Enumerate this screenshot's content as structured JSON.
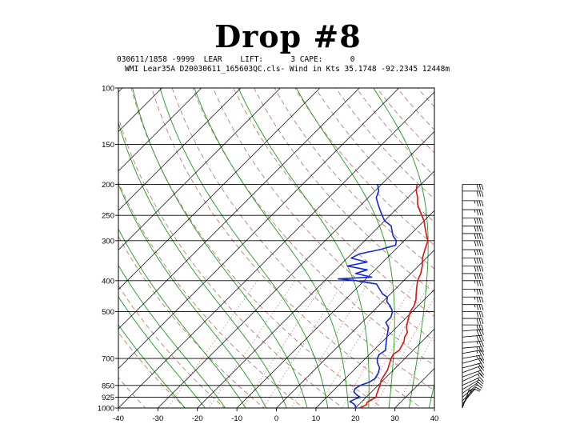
{
  "title": "Drop #8",
  "header": {
    "line1": "030611/1858 -9999  LEAR    LIFT:      3 CAPE:      0",
    "line2": "WMI Lear35A D20030611_165603QC.cls- Wind in Kts 35.1748 -92.2345 12448m"
  },
  "colors": {
    "temperature": "#e01010",
    "dewpoint": "#1028d8",
    "moist_adiabat": "#1e9a1e",
    "dry_adiabat": "#b46f5f",
    "mixing_ratio": "#d08080",
    "isotherm": "#000000",
    "isobar": "#000000"
  },
  "chart_data": {
    "type": "skew-t",
    "xlabel": "",
    "ylabel": "",
    "x_ticks": [
      -40,
      -30,
      -20,
      -10,
      0,
      10,
      20,
      30,
      40
    ],
    "xlim": [
      -40,
      40
    ],
    "y_ticks": [
      100,
      150,
      200,
      250,
      300,
      400,
      500,
      700,
      850,
      925,
      1000
    ],
    "ylim": [
      1000,
      100
    ],
    "y_scale": "log",
    "grid": true,
    "series": [
      {
        "key": "temperature",
        "points": [
          [
            1000,
            21
          ],
          [
            990,
            21.5
          ],
          [
            975,
            22
          ],
          [
            960,
            21.5
          ],
          [
            940,
            22
          ],
          [
            925,
            22.5
          ],
          [
            910,
            22
          ],
          [
            890,
            21.5
          ],
          [
            870,
            21
          ],
          [
            850,
            20.5
          ],
          [
            820,
            19.5
          ],
          [
            790,
            19
          ],
          [
            760,
            18.5
          ],
          [
            730,
            17.5
          ],
          [
            700,
            16.5
          ],
          [
            680,
            16
          ],
          [
            660,
            16.5
          ],
          [
            640,
            16
          ],
          [
            620,
            15.5
          ],
          [
            600,
            14.5
          ],
          [
            580,
            14
          ],
          [
            560,
            12.5
          ],
          [
            540,
            11.5
          ],
          [
            520,
            10.5
          ],
          [
            500,
            9.5
          ],
          [
            480,
            9
          ],
          [
            460,
            8
          ],
          [
            440,
            6.5
          ],
          [
            420,
            5
          ],
          [
            400,
            3.5
          ],
          [
            380,
            2.5
          ],
          [
            360,
            1
          ],
          [
            340,
            -1
          ],
          [
            320,
            -2.5
          ],
          [
            300,
            -4
          ],
          [
            290,
            -5.5
          ],
          [
            280,
            -7
          ],
          [
            270,
            -8.5
          ],
          [
            260,
            -10
          ],
          [
            250,
            -12
          ],
          [
            240,
            -14
          ],
          [
            230,
            -16
          ],
          [
            220,
            -17.5
          ],
          [
            210,
            -19.5
          ],
          [
            200,
            -21
          ]
        ]
      },
      {
        "key": "dewpoint",
        "points": [
          [
            1000,
            20
          ],
          [
            985,
            19.5
          ],
          [
            970,
            18.5
          ],
          [
            955,
            17
          ],
          [
            940,
            17.5
          ],
          [
            925,
            18.5
          ],
          [
            910,
            17
          ],
          [
            890,
            15.5
          ],
          [
            870,
            15
          ],
          [
            850,
            15.5
          ],
          [
            830,
            17
          ],
          [
            810,
            17.5
          ],
          [
            780,
            17
          ],
          [
            750,
            16
          ],
          [
            720,
            14
          ],
          [
            700,
            13
          ],
          [
            680,
            12.5
          ],
          [
            660,
            13
          ],
          [
            640,
            12
          ],
          [
            620,
            11
          ],
          [
            600,
            10
          ],
          [
            580,
            9
          ],
          [
            560,
            8
          ],
          [
            540,
            6
          ],
          [
            520,
            6
          ],
          [
            500,
            5
          ],
          [
            480,
            3
          ],
          [
            465,
            1
          ],
          [
            450,
            0
          ],
          [
            440,
            -2
          ],
          [
            425,
            -4
          ],
          [
            410,
            -6
          ],
          [
            400,
            -12
          ],
          [
            395,
            -17
          ],
          [
            390,
            -9
          ],
          [
            380,
            -14
          ],
          [
            370,
            -12
          ],
          [
            360,
            -18
          ],
          [
            350,
            -14
          ],
          [
            340,
            -19
          ],
          [
            330,
            -18
          ],
          [
            320,
            -14
          ],
          [
            310,
            -11
          ],
          [
            300,
            -12
          ],
          [
            290,
            -14
          ],
          [
            280,
            -15.5
          ],
          [
            270,
            -17
          ],
          [
            260,
            -20
          ],
          [
            250,
            -22
          ],
          [
            240,
            -24
          ],
          [
            230,
            -26
          ],
          [
            220,
            -28
          ],
          [
            210,
            -29
          ],
          [
            200,
            -31
          ]
        ]
      }
    ],
    "wind_barbs_kts": [
      [
        1000,
        5,
        200
      ],
      [
        985,
        5,
        210
      ],
      [
        970,
        10,
        220
      ],
      [
        950,
        10,
        225
      ],
      [
        925,
        10,
        230
      ],
      [
        900,
        15,
        235
      ],
      [
        875,
        15,
        240
      ],
      [
        850,
        15,
        245
      ],
      [
        825,
        15,
        245
      ],
      [
        800,
        20,
        250
      ],
      [
        775,
        20,
        250
      ],
      [
        750,
        20,
        255
      ],
      [
        725,
        20,
        255
      ],
      [
        700,
        25,
        260
      ],
      [
        675,
        25,
        260
      ],
      [
        650,
        25,
        265
      ],
      [
        625,
        25,
        265
      ],
      [
        600,
        30,
        265
      ],
      [
        575,
        30,
        265
      ],
      [
        550,
        30,
        270
      ],
      [
        525,
        30,
        270
      ],
      [
        500,
        30,
        270
      ],
      [
        475,
        35,
        270
      ],
      [
        450,
        35,
        270
      ],
      [
        425,
        35,
        270
      ],
      [
        400,
        35,
        270
      ],
      [
        380,
        40,
        270
      ],
      [
        360,
        40,
        270
      ],
      [
        340,
        40,
        270
      ],
      [
        320,
        40,
        270
      ],
      [
        300,
        40,
        270
      ],
      [
        285,
        40,
        270
      ],
      [
        270,
        40,
        270
      ],
      [
        255,
        40,
        270
      ],
      [
        240,
        35,
        270
      ],
      [
        225,
        35,
        270
      ],
      [
        210,
        30,
        270
      ],
      [
        200,
        30,
        270
      ]
    ]
  }
}
